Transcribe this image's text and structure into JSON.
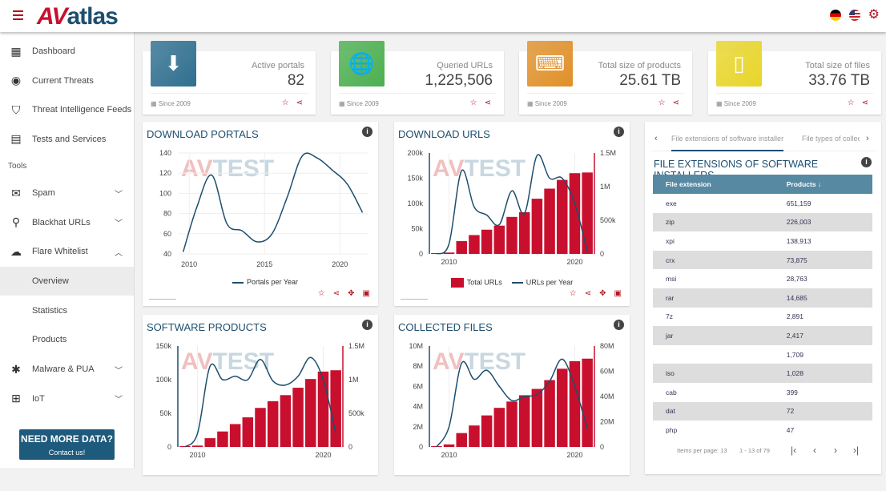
{
  "header": {
    "logo": "AVatlas",
    "logo_av": "AV",
    "logo_rest": "atlas"
  },
  "sidebar": {
    "items": [
      {
        "label": "Dashboard",
        "icon": "dashboard-icon",
        "glyph": "▦"
      },
      {
        "label": "Current Threats",
        "icon": "radar-icon",
        "glyph": "◉"
      },
      {
        "label": "Threat Intelligence Feeds",
        "icon": "shield-icon",
        "glyph": "⛉"
      },
      {
        "label": "Tests and Services",
        "icon": "clipboard-icon",
        "glyph": "▤"
      }
    ],
    "tools_label": "Tools",
    "tools": [
      {
        "label": "Spam",
        "icon": "mail-icon",
        "glyph": "✉",
        "chevron": "down"
      },
      {
        "label": "Blackhat URLs",
        "icon": "search-icon",
        "glyph": "⚲",
        "chevron": "down"
      },
      {
        "label": "Flare Whitelist",
        "icon": "cloud-download-icon",
        "glyph": "☁",
        "chevron": "up"
      }
    ],
    "subitems": [
      {
        "label": "Overview",
        "active": true
      },
      {
        "label": "Statistics"
      },
      {
        "label": "Products"
      }
    ],
    "tools2": [
      {
        "label": "Malware & PUA",
        "icon": "bug-icon",
        "glyph": "✱",
        "chevron": "down"
      },
      {
        "label": "IoT",
        "icon": "network-icon",
        "glyph": "⊞",
        "chevron": "down"
      }
    ],
    "cta": {
      "title": "NEED MORE DATA?",
      "subtitle": "Contact us!"
    }
  },
  "stats": [
    {
      "label": "Active portals",
      "value": "82",
      "since": "Since 2009",
      "icon": "cloud-download-icon",
      "glyph": "⬇",
      "color": "#2f6f8f"
    },
    {
      "label": "Queried URLs",
      "value": "1,225,506",
      "since": "Since 2009",
      "icon": "globe-icon",
      "glyph": "🌐",
      "color": "#4caf50"
    },
    {
      "label": "Total size of products",
      "value": "25.61 TB",
      "since": "Since 2009",
      "icon": "laptop-code-icon",
      "glyph": "⌨",
      "color": "#e0902a"
    },
    {
      "label": "Total size of files",
      "value": "33.76 TB",
      "since": "Since 2009",
      "icon": "file-icon",
      "glyph": "▯",
      "color": "#e8d52a"
    }
  ],
  "colors": {
    "bar": "#c8102e",
    "line": "#1d4e6e",
    "header_blue": "#1d4e6e",
    "accent_red": "#b3121e"
  },
  "chart_data": [
    {
      "title": "DOWNLOAD PORTALS",
      "type": "line",
      "x": [
        2009.6,
        2010.5,
        2011.5,
        2012.5,
        2013.5,
        2014.5,
        2015.5,
        2016.5,
        2017.5,
        2018.5,
        2019.5,
        2020.5,
        2021.5
      ],
      "series": [
        {
          "name": "Portals per Year",
          "values": [
            42,
            86,
            118,
            70,
            63,
            52,
            60,
            96,
            137,
            135,
            123,
            109,
            81
          ]
        }
      ],
      "ylim": [
        40,
        140
      ],
      "yticks": [
        "40",
        "60",
        "80",
        "100",
        "120",
        "140"
      ],
      "xticks": [
        "2010",
        "2015",
        "2020"
      ],
      "xlim": [
        2009.3,
        2021.9
      ],
      "grid": true,
      "legend": "bottom",
      "watermark": "AV-TEST"
    },
    {
      "title": "DOWNLOAD URLS",
      "type": "bar+line",
      "x": [
        2009,
        2010,
        2011,
        2012,
        2013,
        2014,
        2015,
        2016,
        2017,
        2018,
        2019,
        2020,
        2021
      ],
      "bars": {
        "name": "Total URLs",
        "values": [
          0,
          20000,
          190000,
          280000,
          360000,
          420000,
          550000,
          620000,
          820000,
          970000,
          1100000,
          1200000,
          1210000
        ],
        "ylim": [
          0,
          1500000
        ],
        "yticks": [
          "0",
          "500k",
          "1M",
          "1.5M"
        ]
      },
      "line": {
        "name": "URLs per Year",
        "values": [
          0,
          20000,
          165000,
          93000,
          77000,
          58000,
          125000,
          80000,
          195000,
          150000,
          150000,
          100000,
          5000
        ],
        "ylim": [
          0,
          200000
        ],
        "yticks": [
          "0",
          "50k",
          "100k",
          "150k",
          "200k"
        ]
      },
      "xticks": [
        "2010",
        "2020"
      ],
      "legend": "bottom",
      "watermark": "AV-TEST"
    },
    {
      "title": "SOFTWARE PRODUCTS",
      "type": "bar+line",
      "x": [
        2009,
        2010,
        2011,
        2012,
        2013,
        2014,
        2015,
        2016,
        2017,
        2018,
        2019,
        2020,
        2021
      ],
      "bars": {
        "values": [
          0,
          20000,
          130000,
          230000,
          340000,
          440000,
          580000,
          680000,
          770000,
          880000,
          1010000,
          1120000,
          1140000
        ],
        "ylim": [
          0,
          1500000
        ],
        "yticks": [
          "0",
          "500k",
          "1M",
          "1.5M"
        ]
      },
      "line": {
        "values": [
          0,
          20000,
          120000,
          100000,
          105000,
          100000,
          130000,
          98000,
          92000,
          105000,
          133000,
          100000,
          20000
        ],
        "ylim": [
          0,
          150000
        ],
        "yticks": [
          "0",
          "50k",
          "100k",
          "150k"
        ]
      },
      "xticks": [
        "2010",
        "2020"
      ],
      "watermark": "AV-TEST"
    },
    {
      "title": "COLLECTED FILES",
      "type": "bar+line",
      "x": [
        2009,
        2010,
        2011,
        2012,
        2013,
        2014,
        2015,
        2016,
        2017,
        2018,
        2019,
        2020,
        2021
      ],
      "bars": {
        "values": [
          0,
          2000000,
          11000000,
          17000000,
          25000000,
          31000000,
          36000000,
          41000000,
          46000000,
          53000000,
          62000000,
          68000000,
          70000000
        ],
        "ylim": [
          0,
          80000000
        ],
        "yticks": [
          "0",
          "20M",
          "40M",
          "60M",
          "80M"
        ]
      },
      "line": {
        "values": [
          0,
          2000000,
          8300000,
          6700000,
          7600000,
          6000000,
          4600000,
          5000000,
          5200000,
          6500000,
          8700000,
          6000000,
          1800000
        ],
        "ylim": [
          0,
          10000000
        ],
        "yticks": [
          "0",
          "2M",
          "4M",
          "6M",
          "8M",
          "10M"
        ]
      },
      "xticks": [
        "2010",
        "2020"
      ],
      "watermark": "AV-TEST"
    }
  ],
  "right_panel": {
    "tabs": [
      "File extensions of software installers",
      "File types of collecte"
    ],
    "title": "FILE EXTENSIONS OF SOFTWARE INSTALLERS",
    "columns": [
      "File extension",
      "Products ↓"
    ],
    "rows": [
      [
        "exe",
        "651,159"
      ],
      [
        "zip",
        "226,003"
      ],
      [
        "xpi",
        "138,913"
      ],
      [
        "crx",
        "73,875"
      ],
      [
        "msi",
        "28,763"
      ],
      [
        "rar",
        "14,685"
      ],
      [
        "7z",
        "2,891"
      ],
      [
        "jar",
        "2,417"
      ],
      [
        "",
        "1,709"
      ],
      [
        "iso",
        "1,028"
      ],
      [
        "cab",
        "399"
      ],
      [
        "dat",
        "72"
      ],
      [
        "php",
        "47"
      ]
    ],
    "pager": {
      "items_per_page": "Items per page: 13",
      "range": "1 - 13 of 79"
    }
  }
}
